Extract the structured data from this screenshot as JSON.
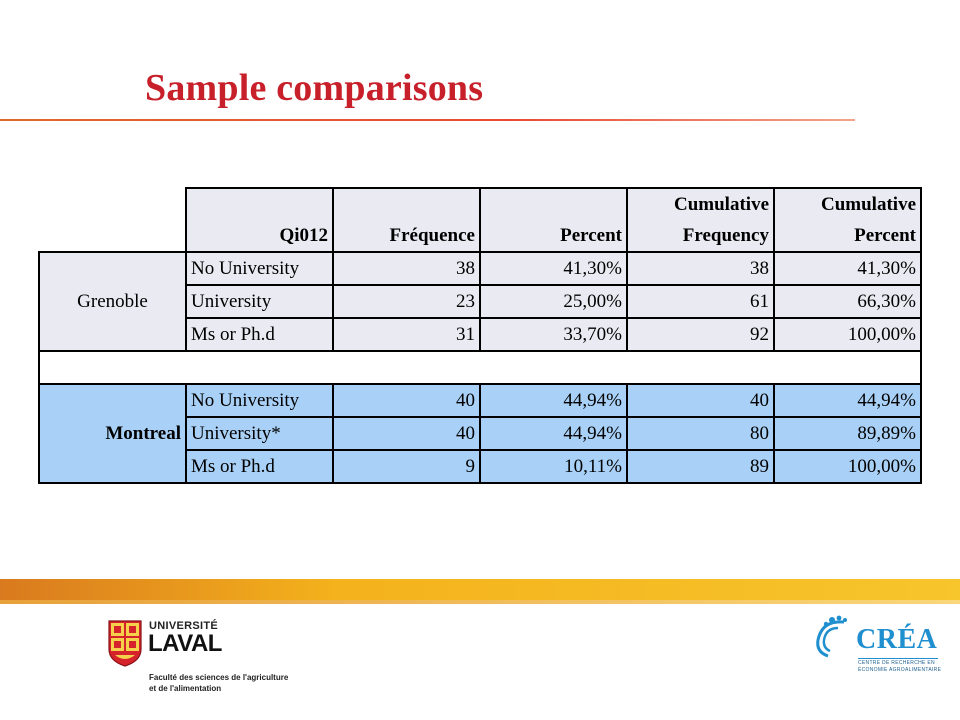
{
  "slide": {
    "title": "Sample comparisons"
  },
  "table": {
    "headers": {
      "variable": "Qi012",
      "frequency": "Fréquence",
      "percent": "Percent",
      "cum_frequency_line1": "Cumulative",
      "cum_frequency_line2": "Frequency",
      "cum_percent_line1": "Cumulative",
      "cum_percent_line2": "Percent"
    },
    "groups": [
      {
        "city": "Grenoble",
        "rows": [
          {
            "level": "No University",
            "frequency": "38",
            "percent": "41,30%",
            "cum_frequency": "38",
            "cum_percent": "41,30%"
          },
          {
            "level": "University",
            "frequency": "23",
            "percent": "25,00%",
            "cum_frequency": "61",
            "cum_percent": "66,30%"
          },
          {
            "level": "Ms or Ph.d",
            "frequency": "31",
            "percent": "33,70%",
            "cum_frequency": "92",
            "cum_percent": "100,00%"
          }
        ]
      },
      {
        "city": "Montreal",
        "rows": [
          {
            "level": "No University",
            "frequency": "40",
            "percent": "44,94%",
            "cum_frequency": "40",
            "cum_percent": "44,94%"
          },
          {
            "level": "University*",
            "frequency": "40",
            "percent": "44,94%",
            "cum_frequency": "80",
            "cum_percent": "89,89%"
          },
          {
            "level": "Ms or Ph.d",
            "frequency": "9",
            "percent": "10,11%",
            "cum_frequency": "89",
            "cum_percent": "100,00%"
          }
        ]
      }
    ]
  },
  "footer": {
    "laval": {
      "line1": "UNIVERSITÉ",
      "line2": "LAVAL",
      "faculty_line1": "Faculté des sciences de l'agriculture",
      "faculty_line2": "et de l'alimentation"
    },
    "crea": {
      "name": "CRÉA",
      "sub_line1": "CENTRE DE RECHERCHE EN",
      "sub_line2": "ÉCONOMIE AGROALIMENTAIRE"
    }
  },
  "colors": {
    "title": "#c8202a",
    "grenoble_fill": "#eaeaf2",
    "montreal_fill": "#a9d1f7",
    "crea_blue": "#1f8fcf",
    "laval_red": "#d6232b"
  }
}
